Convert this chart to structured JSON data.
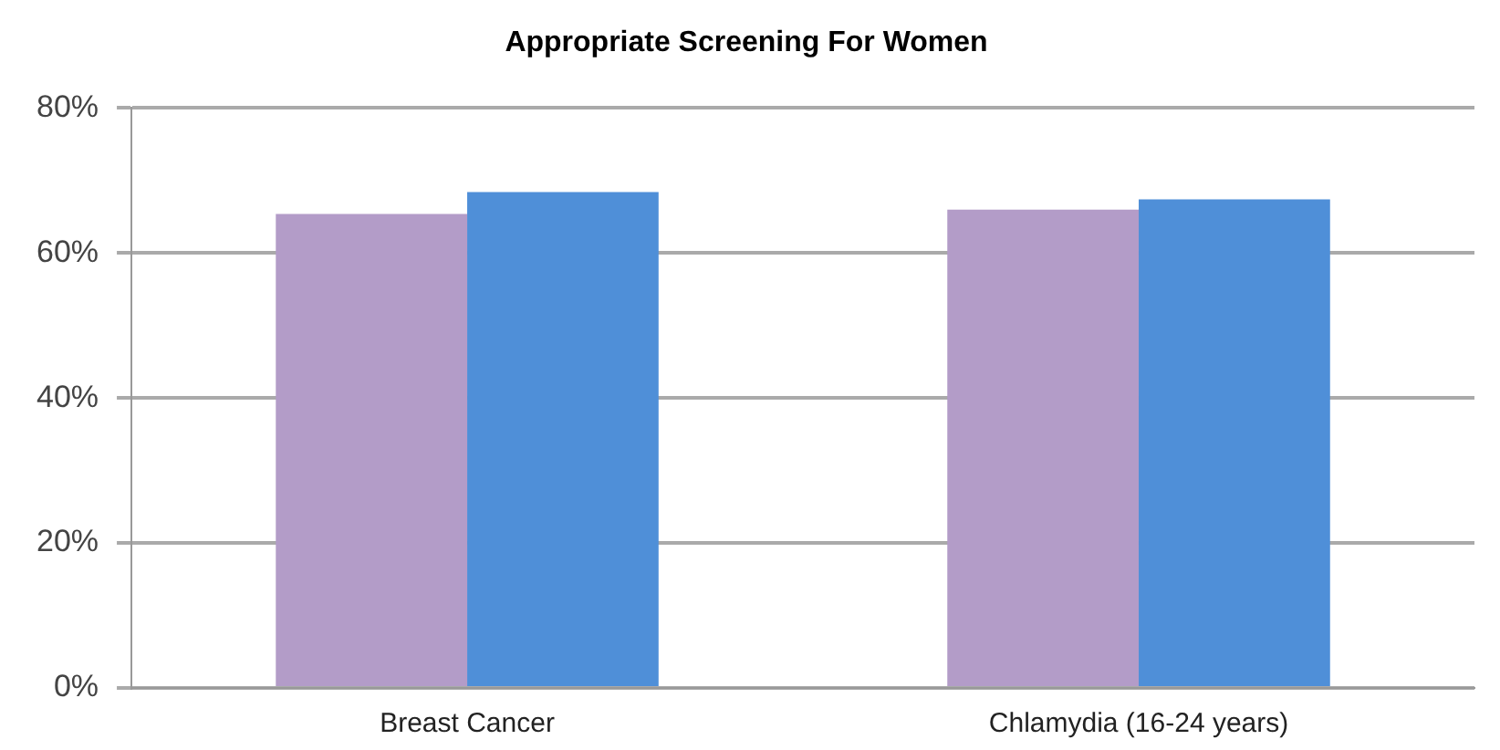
{
  "chart_data": {
    "type": "bar",
    "title": "Appropriate Screening For Women",
    "categories": [
      "Breast Cancer",
      "Chlamydia (16-24 years)"
    ],
    "series": [
      {
        "color": "#b39cc8",
        "values": [
          65.4,
          66
        ]
      },
      {
        "color": "#4f8fd8",
        "values": [
          68.4,
          67.4
        ]
      }
    ],
    "ylim": [
      0,
      80
    ],
    "yticks": [
      {
        "value": 0,
        "label": "0%"
      },
      {
        "value": 20,
        "label": "20%"
      },
      {
        "value": 40,
        "label": "40%"
      },
      {
        "value": 60,
        "label": "60%"
      },
      {
        "value": 80,
        "label": "80%"
      }
    ],
    "grid": "y",
    "legend": false
  }
}
